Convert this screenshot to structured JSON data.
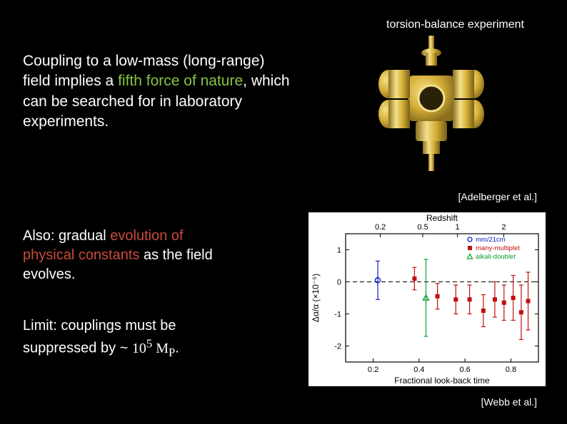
{
  "caption_top": "torsion-balance experiment",
  "paragraph1": {
    "pre": "Coupling to a low-mass (long-range) field implies a ",
    "hl": "fifth force of nature",
    "post": ", which can be searched for in laboratory experiments."
  },
  "citation1": "[Adelberger et al.]",
  "paragraph2": {
    "pre": "Also: gradual ",
    "hl": "evolution of physical constants",
    "post": " as the field evolves."
  },
  "paragraph3": {
    "pre": "Limit: couplings must be suppressed by ~ ",
    "coeff": "10",
    "exp": "5",
    "sym": " M",
    "sub": "P",
    "post": "."
  },
  "citation2": "[Webb et al.]",
  "apparatus": {
    "body_color": "#d4af37",
    "shadow_color": "#8b6f1f",
    "highlight_color": "#f5e08a"
  },
  "chart": {
    "type": "scatter-errorbar",
    "background_color": "#ffffff",
    "axis_color": "#000000",
    "grid_color": "#000000",
    "title_top": "Redshift",
    "xlabel": "Fractional look-back time",
    "ylabel": "Δα/α (×10⁻⁵)",
    "x_ticks_top": [
      "0.2",
      "0.5",
      "1",
      "2"
    ],
    "x_ticks_top_pos": [
      0.18,
      0.4,
      0.58,
      0.82
    ],
    "x_ticks_bottom": [
      "0.2",
      "0.4",
      "0.6",
      "0.8"
    ],
    "x_ticks_bottom_pos": [
      0.2,
      0.4,
      0.6,
      0.8
    ],
    "y_ticks": [
      "-2",
      "-1",
      "0",
      "1"
    ],
    "y_ticks_pos": [
      -2,
      -1,
      0,
      1
    ],
    "ylim": [
      -2.5,
      1.5
    ],
    "xlim": [
      0.08,
      0.92
    ],
    "legend": [
      {
        "label": "mm/21cm",
        "color": "#1020c0",
        "marker": "circle-open"
      },
      {
        "label": "many-multiplet",
        "color": "#c01010",
        "marker": "square"
      },
      {
        "label": "alkali-doublet",
        "color": "#10a030",
        "marker": "triangle-open"
      }
    ],
    "points_blue": [
      {
        "x": 0.22,
        "y": 0.05,
        "err": 0.6
      }
    ],
    "points_green": [
      {
        "x": 0.43,
        "y": -0.5,
        "err": 1.2
      }
    ],
    "points_red": [
      {
        "x": 0.38,
        "y": 0.1,
        "err": 0.35
      },
      {
        "x": 0.48,
        "y": -0.45,
        "err": 0.4
      },
      {
        "x": 0.56,
        "y": -0.55,
        "err": 0.45
      },
      {
        "x": 0.62,
        "y": -0.55,
        "err": 0.45
      },
      {
        "x": 0.68,
        "y": -0.9,
        "err": 0.5
      },
      {
        "x": 0.73,
        "y": -0.55,
        "err": 0.55
      },
      {
        "x": 0.77,
        "y": -0.65,
        "err": 0.55
      },
      {
        "x": 0.81,
        "y": -0.5,
        "err": 0.7
      },
      {
        "x": 0.845,
        "y": -0.95,
        "err": 0.85
      },
      {
        "x": 0.875,
        "y": -0.6,
        "err": 0.9
      }
    ]
  }
}
